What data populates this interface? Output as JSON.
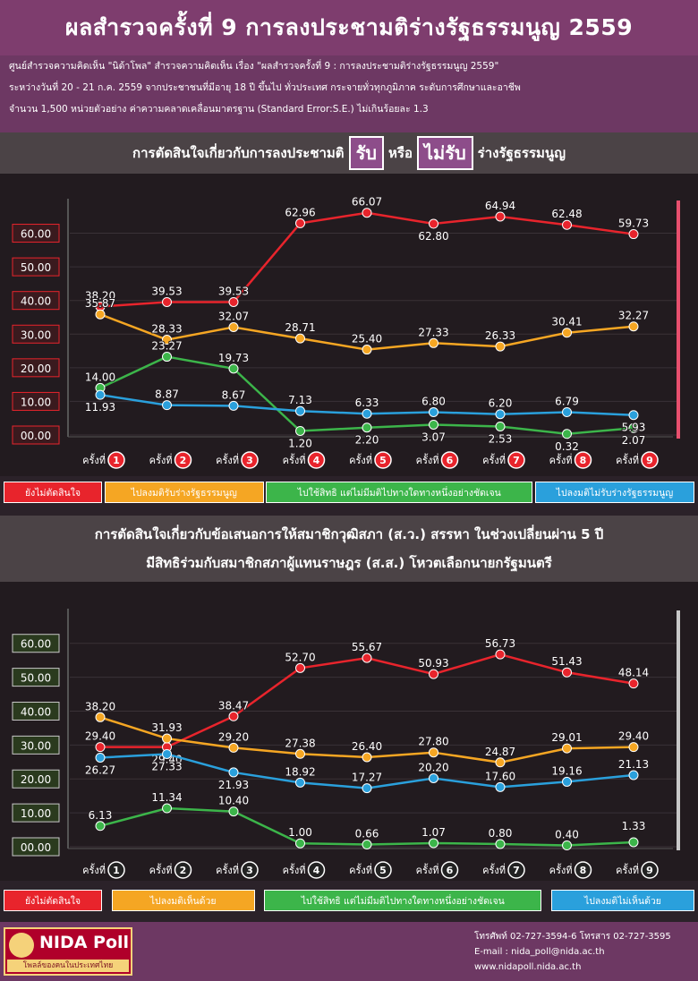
{
  "header": {
    "title": "ผลสำรวจครั้งที่ 9 การลงประชามติร่างรัฐธรรมนูญ 2559",
    "intro_lines": [
      "ศูนย์สำรวจความคิดเห็น \"นิด้าโพล\" สำรวจความคิดเห็น เรื่อง \"ผลสำรวจครั้งที่ 9 : การลงประชามติร่างรัฐธรรมนูญ 2559\"",
      "ระหว่างวันที่ 20 - 21 ก.ค. 2559 จากประชาชนที่มีอายุ 18 ปี ขึ้นไป ทั่วประเทศ กระจายทั่วทุกภูมิภาค ระดับการศึกษาและอาชีพ",
      "จำนวน 1,500 หน่วยตัวอย่าง ค่าความคลาดเคลื่อนมาตรฐาน (Standard Error:S.E.) ไม่เกินร้อยละ 1.3"
    ]
  },
  "chart1_heading": {
    "prefix": "การตัดสินใจเกี่ยวกับการลงประชามติ",
    "accept": "รับ",
    "or": "หรือ",
    "reject": "ไม่รับ",
    "suffix": "ร่างรัฐธรรมนูญ"
  },
  "chart2_heading": {
    "line1": "การตัดสินใจเกี่ยวกับข้อเสนอการให้สมาชิกวุฒิสภา (ส.ว.) สรรหา ในช่วงเปลี่ยนผ่าน 5 ปี",
    "line2": "มีสิทธิร่วมกับสมาชิกสภาผู้แทนราษฎร (ส.ส.) โหวตเลือกนายกรัฐมนตรี"
  },
  "colors": {
    "red": "#e8242c",
    "orange": "#f5a623",
    "green": "#3cb54a",
    "blue": "#2aa0dc"
  },
  "chart_data": [
    {
      "type": "line",
      "title": "การตัดสินใจเกี่ยวกับการลงประชามติ รับ หรือ ไม่รับ ร่างรัฐธรรมนูญ",
      "categories": [
        "ครั้งที่ 1",
        "ครั้งที่ 2",
        "ครั้งที่ 3",
        "ครั้งที่ 4",
        "ครั้งที่ 5",
        "ครั้งที่ 6",
        "ครั้งที่ 7",
        "ครั้งที่ 8",
        "ครั้งที่ 9"
      ],
      "round_word": "ครั้งที่",
      "round_numbers": [
        "1",
        "2",
        "3",
        "4",
        "5",
        "6",
        "7",
        "8",
        "9"
      ],
      "yticks": [
        "00.00",
        "10.00",
        "20.00",
        "30.00",
        "40.00",
        "50.00",
        "60.00"
      ],
      "ylim": [
        0,
        66
      ],
      "series": [
        {
          "name": "ยังไม่ตัดสินใจ",
          "color": "#e8242c",
          "values": [
            38.2,
            39.53,
            39.53,
            62.96,
            66.07,
            62.8,
            64.94,
            62.48,
            59.73
          ]
        },
        {
          "name": "ไปลงมติรับร่างรัฐธรรมนูญ",
          "color": "#f5a623",
          "values": [
            35.87,
            28.33,
            32.07,
            28.71,
            25.4,
            27.33,
            26.33,
            30.41,
            32.27
          ]
        },
        {
          "name": "ไปใช้สิทธิ แต่ไม่มีมติไปทางใดทางหนึ่งอย่างชัดเจน",
          "color": "#3cb54a",
          "values": [
            14.0,
            23.27,
            19.73,
            1.2,
            2.2,
            3.07,
            2.53,
            0.32,
            2.07
          ]
        },
        {
          "name": "ไปลงมติไม่รับร่างรัฐธรรมนูญ",
          "color": "#2aa0dc",
          "values": [
            11.93,
            8.87,
            8.67,
            7.13,
            6.33,
            6.8,
            6.2,
            6.79,
            5.93
          ]
        }
      ]
    },
    {
      "type": "line",
      "title": "การตัดสินใจเกี่ยวกับข้อเสนอการให้สมาชิกวุฒิสภา (ส.ว.) สรรหา ในช่วงเปลี่ยนผ่าน 5 ปี มีสิทธิร่วมกับสมาชิกสภาผู้แทนราษฎร (ส.ส.) โหวตเลือกนายกรัฐมนตรี",
      "categories": [
        "ครั้งที่ 1",
        "ครั้งที่ 2",
        "ครั้งที่ 3",
        "ครั้งที่ 4",
        "ครั้งที่ 5",
        "ครั้งที่ 6",
        "ครั้งที่ 7",
        "ครั้งที่ 8",
        "ครั้งที่ 9"
      ],
      "round_word": "ครั้งที่",
      "round_numbers": [
        "1",
        "2",
        "3",
        "4",
        "5",
        "6",
        "7",
        "8",
        "9"
      ],
      "yticks": [
        "00.00",
        "10.00",
        "20.00",
        "30.00",
        "40.00",
        "50.00",
        "60.00"
      ],
      "ylim": [
        0,
        66
      ],
      "series": [
        {
          "name": "ยังไม่ตัดสินใจ",
          "color": "#e8242c",
          "values": [
            29.4,
            29.4,
            38.47,
            52.7,
            55.67,
            50.93,
            56.73,
            51.43,
            48.14
          ]
        },
        {
          "name": "ไปลงมติเห็นด้วย",
          "color": "#f5a623",
          "values": [
            38.2,
            31.93,
            29.2,
            27.38,
            26.4,
            27.8,
            24.87,
            29.01,
            29.4
          ]
        },
        {
          "name": "ไปใช้สิทธิ แต่ไม่มีมติไปทางใดทางหนึ่งอย่างชัดเจน",
          "color": "#3cb54a",
          "values": [
            6.13,
            11.34,
            10.4,
            1.0,
            0.66,
            1.07,
            0.8,
            0.4,
            1.33
          ]
        },
        {
          "name": "ไปลงมติไม่เห็นด้วย",
          "color": "#2aa0dc",
          "values": [
            26.27,
            27.33,
            21.93,
            18.92,
            17.27,
            20.2,
            17.6,
            19.16,
            21.13
          ]
        }
      ]
    }
  ],
  "footer": {
    "logo_text": "NIDA Poll",
    "logo_tagline": "โพลล์ของคนในประเทศไทย",
    "phone": "โทรศัพท์ 02-727-3594-6 โทรสาร 02-727-3595",
    "email": "E-mail : nida_poll@nida.ac.th",
    "website": "www.nidapoll.nida.ac.th"
  }
}
